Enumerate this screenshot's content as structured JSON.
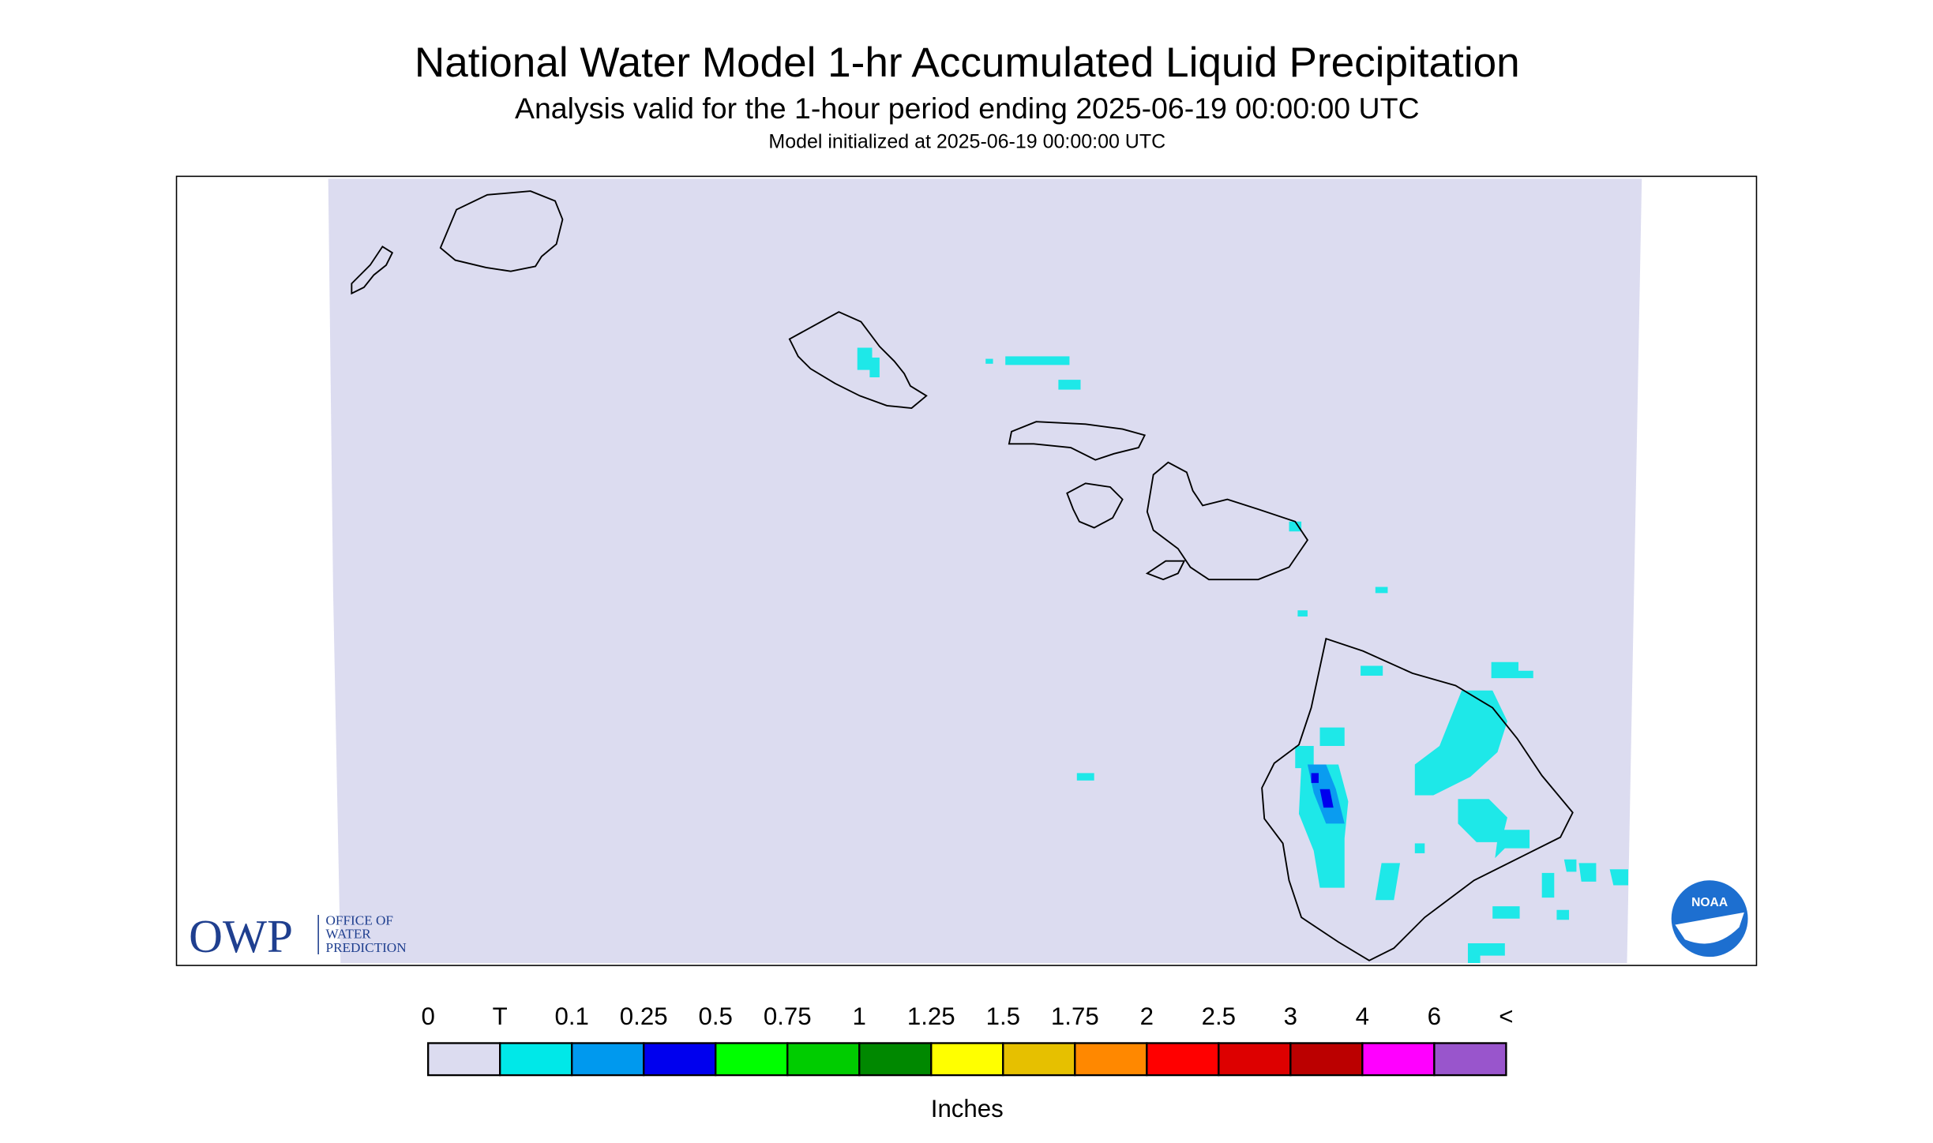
{
  "header": {
    "title": "National Water Model 1-hr Accumulated Liquid Precipitation",
    "subtitle": "Analysis valid for the 1-hour period ending 2025-06-19 00:00:00 UTC",
    "init": "Model initialized at 2025-06-19 00:00:00 UTC"
  },
  "logos": {
    "owp": "OWP",
    "owp_lines": [
      "OFFICE OF",
      "WATER",
      "PREDICTION"
    ],
    "noaa": "NOAA"
  },
  "legend": {
    "labels": [
      "0",
      "T",
      "0.1",
      "0.25",
      "0.5",
      "0.75",
      "1",
      "1.25",
      "1.5",
      "1.75",
      "2",
      "2.5",
      "3",
      "4",
      "6",
      "<"
    ],
    "colors": [
      "#dcdcf0",
      "#00e8e8",
      "#0099ee",
      "#0000ee",
      "#00ff00",
      "#00cc00",
      "#008800",
      "#ffff00",
      "#e6c000",
      "#ff8800",
      "#ff0000",
      "#dd0000",
      "#bb0000",
      "#ff00ff",
      "#9955cc"
    ],
    "unit": "Inches"
  }
}
